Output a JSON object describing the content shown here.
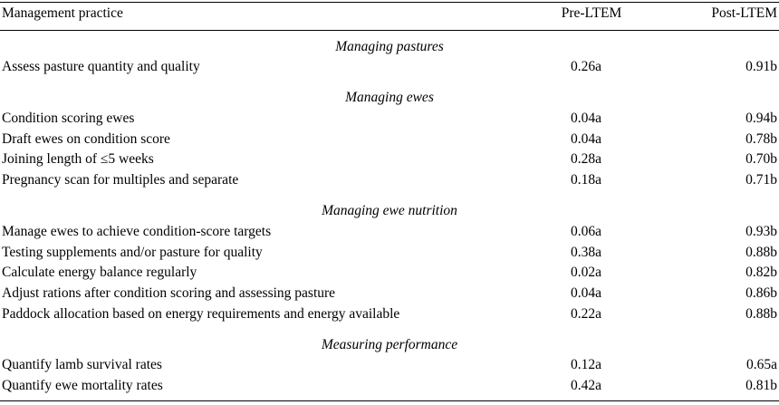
{
  "table": {
    "headers": {
      "practice": "Management practice",
      "pre": "Pre-LTEM",
      "post": "Post-LTEM"
    },
    "sections": [
      {
        "title": "Managing pastures",
        "rows": [
          {
            "practice": "Assess pasture quantity and quality",
            "pre": "0.26a",
            "post": "0.91b"
          }
        ]
      },
      {
        "title": "Managing ewes",
        "rows": [
          {
            "practice": "Condition scoring ewes",
            "pre": "0.04a",
            "post": "0.94b"
          },
          {
            "practice": "Draft ewes on condition score",
            "pre": "0.04a",
            "post": "0.78b"
          },
          {
            "practice": "Joining length of ≤5 weeks",
            "pre": "0.28a",
            "post": "0.70b"
          },
          {
            "practice": "Pregnancy scan for multiples and separate",
            "pre": "0.18a",
            "post": "0.71b"
          }
        ]
      },
      {
        "title": "Managing ewe nutrition",
        "rows": [
          {
            "practice": "Manage ewes to achieve condition-score targets",
            "pre": "0.06a",
            "post": "0.93b"
          },
          {
            "practice": "Testing supplements and/or pasture for quality",
            "pre": "0.38a",
            "post": "0.88b"
          },
          {
            "practice": "Calculate energy balance regularly",
            "pre": "0.02a",
            "post": "0.82b"
          },
          {
            "practice": "Adjust rations after condition scoring and assessing pasture",
            "pre": "0.04a",
            "post": "0.86b"
          },
          {
            "practice": "Paddock allocation based on energy requirements and energy available",
            "pre": "0.22a",
            "post": "0.88b"
          }
        ]
      },
      {
        "title": "Measuring performance",
        "rows": [
          {
            "practice": "Quantify lamb survival rates",
            "pre": "0.12a",
            "post": "0.65a"
          },
          {
            "practice": "Quantify ewe mortality rates",
            "pre": "0.42a",
            "post": "0.81b"
          }
        ]
      }
    ]
  }
}
